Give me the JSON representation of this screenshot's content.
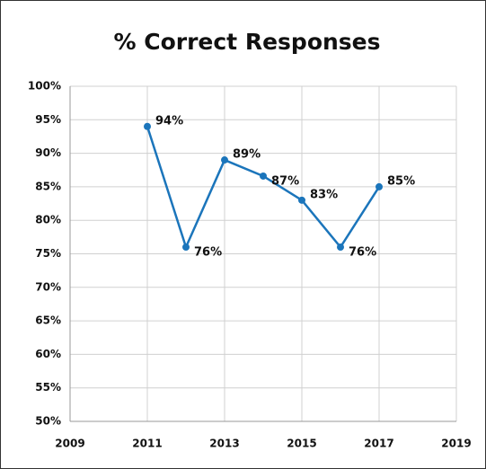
{
  "chart_data": {
    "type": "line",
    "title": "% Correct Responses",
    "x": [
      2011,
      2012,
      2013,
      2014,
      2015,
      2016,
      2017
    ],
    "series": [
      {
        "name": "% Correct",
        "color": "#1b75bb",
        "values": [
          94,
          76,
          89,
          86.6,
          83,
          76,
          85
        ],
        "value_labels": [
          "94%",
          "76%",
          "89%",
          "87%",
          "83%",
          "76%",
          "85%"
        ]
      }
    ],
    "xlim": [
      2009,
      2019
    ],
    "xticks": [
      2009,
      2011,
      2013,
      2015,
      2017,
      2019
    ],
    "ylim": [
      50,
      100
    ],
    "yticks": [
      {
        "value": 50,
        "label": "50%"
      },
      {
        "value": 55,
        "label": "55%"
      },
      {
        "value": 60,
        "label": "60%"
      },
      {
        "value": 65,
        "label": "65%"
      },
      {
        "value": 70,
        "label": "70%"
      },
      {
        "value": 75,
        "label": "75%"
      },
      {
        "value": 80,
        "label": "80%"
      },
      {
        "value": 85,
        "label": "85%"
      },
      {
        "value": 90,
        "label": "90%"
      },
      {
        "value": 95,
        "label": "95%"
      },
      {
        "value": 100,
        "label": "100%"
      }
    ],
    "grid": true
  }
}
